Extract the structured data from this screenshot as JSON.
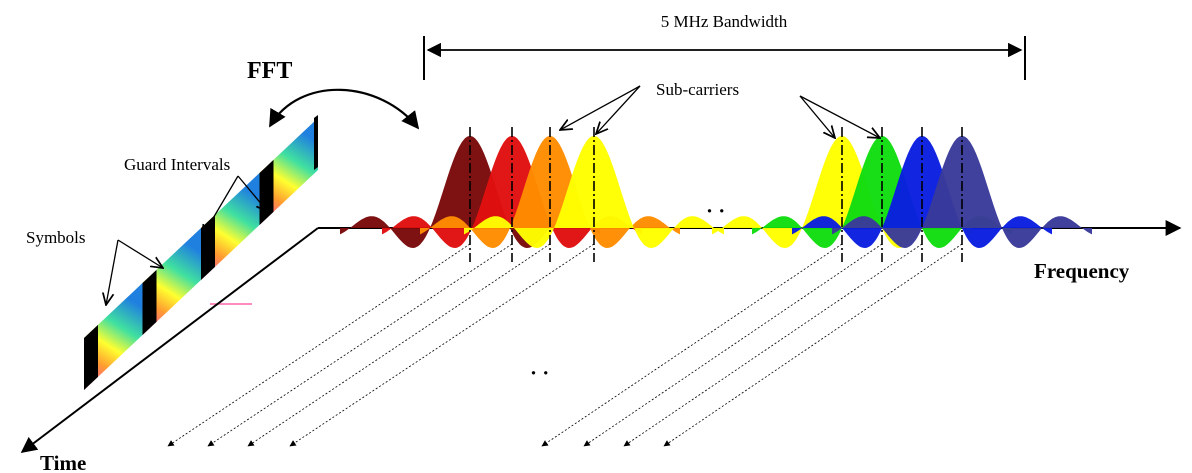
{
  "labels": {
    "bandwidth": "5 MHz Bandwidth",
    "fft": "FFT",
    "subcarriers": "Sub-carriers",
    "guard_intervals": "Guard Intervals",
    "symbols": "Symbols",
    "frequency": "Frequency",
    "time": "Time",
    "ellipsis_freq": "· ·",
    "ellipsis_time": "· ·"
  },
  "colors": {
    "axis": "#000000",
    "subcarriers": [
      "#7a0a0a",
      "#e01010",
      "#ff8c00",
      "#ffff00",
      "#ffff00",
      "#11dd11",
      "#0a1ee0",
      "#3a3a9a"
    ],
    "symbol_gradient": [
      "#ff3ad0",
      "#ff9a30",
      "#ffff30",
      "#40e0a0",
      "#2080e0"
    ],
    "guard": "#000000",
    "accent_line": "#ff66aa"
  },
  "subcarrier_groups": [
    {
      "name": "left-group",
      "colors": [
        "#7a0a0a",
        "#e01010",
        "#ff8c00",
        "#ffff00"
      ]
    },
    {
      "name": "right-group",
      "colors": [
        "#ffff00",
        "#11dd11",
        "#0a1ee0",
        "#3a3a9a"
      ]
    }
  ],
  "symbol_count": 4,
  "guard_interval_count": 4
}
